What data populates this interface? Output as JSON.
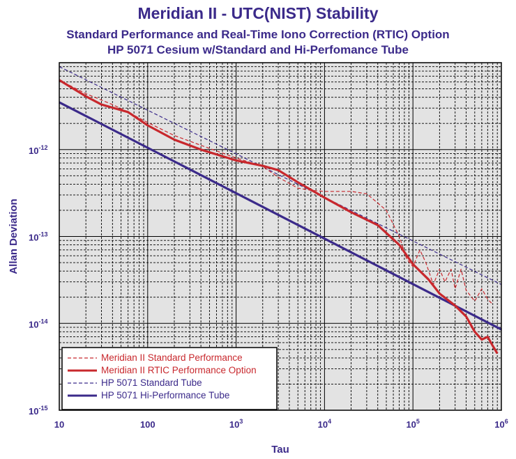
{
  "titles": {
    "main": "Meridian II - UTC(NIST) Stability",
    "sub1": "Standard Performance and Real-Time Iono Correction (RTIC) Option",
    "sub2": "HP 5071 Cesium w/Standard and Hi-Perfomance Tube"
  },
  "colors": {
    "purple": "#3b2a8a",
    "red": "#c8282d",
    "plot_bg": "#e3e3e3"
  },
  "chart_data": {
    "type": "line",
    "title": "Meridian II - UTC(NIST) Stability",
    "xlabel": "Tau",
    "ylabel": "Allan Deviation",
    "xscale": "log",
    "yscale": "log",
    "xlim": [
      10,
      1000000
    ],
    "ylim": [
      1e-15,
      1e-11
    ],
    "grid": true,
    "legend_position": "bottom-left",
    "x_ticks": [
      {
        "base": "10",
        "exp": ""
      },
      {
        "base": "100",
        "exp": ""
      },
      {
        "base": "10",
        "exp": "3"
      },
      {
        "base": "10",
        "exp": "4"
      },
      {
        "base": "10",
        "exp": "5"
      },
      {
        "base": "10",
        "exp": "6"
      }
    ],
    "y_ticks": [
      {
        "base": "10",
        "exp": "-12"
      },
      {
        "base": "10",
        "exp": "-13"
      },
      {
        "base": "10",
        "exp": "-14"
      },
      {
        "base": "10",
        "exp": "-15"
      }
    ],
    "series": [
      {
        "name": "Meridian II Standard Performance",
        "color": "#c8282d",
        "style": "dashed-thin",
        "points": [
          [
            10,
            6.3e-12
          ],
          [
            20,
            4.4e-12
          ],
          [
            40,
            3.3e-12
          ],
          [
            60,
            2.7e-12
          ],
          [
            100,
            2.05e-12
          ],
          [
            200,
            1.45e-12
          ],
          [
            400,
            1.12e-12
          ],
          [
            1000,
            8e-13
          ],
          [
            2000,
            6.4e-13
          ],
          [
            3000,
            4.8e-13
          ],
          [
            5000,
            3.6e-13
          ],
          [
            7000,
            3.4e-13
          ],
          [
            10000,
            3.3e-13
          ],
          [
            20000,
            3.3e-13
          ],
          [
            30000,
            3.1e-13
          ],
          [
            50000,
            2e-13
          ],
          [
            70000,
            1e-13
          ],
          [
            85000,
            5.5e-14
          ],
          [
            100000,
            4.5e-14
          ],
          [
            120000,
            7e-14
          ],
          [
            140000,
            5e-14
          ],
          [
            170000,
            2.8e-14
          ],
          [
            200000,
            4.2e-14
          ],
          [
            230000,
            3e-14
          ],
          [
            270000,
            4.2e-14
          ],
          [
            300000,
            2.5e-14
          ],
          [
            350000,
            4.2e-14
          ],
          [
            400000,
            2.4e-14
          ],
          [
            500000,
            1.8e-14
          ],
          [
            600000,
            2.5e-14
          ],
          [
            700000,
            1.9e-14
          ],
          [
            800000,
            1.65e-14
          ]
        ]
      },
      {
        "name": "Meridian II RTIC Performance Option",
        "color": "#c8282d",
        "style": "solid-thick",
        "points": [
          [
            10,
            6.3e-12
          ],
          [
            20,
            4.1e-12
          ],
          [
            30,
            3.3e-12
          ],
          [
            60,
            2.7e-12
          ],
          [
            100,
            1.9e-12
          ],
          [
            200,
            1.3e-12
          ],
          [
            400,
            1e-12
          ],
          [
            1000,
            7.5e-13
          ],
          [
            2000,
            6.5e-13
          ],
          [
            3000,
            5.8e-13
          ],
          [
            5000,
            4.2e-13
          ],
          [
            10000,
            2.8e-13
          ],
          [
            20000,
            1.9e-13
          ],
          [
            40000,
            1.35e-13
          ],
          [
            70000,
            8e-14
          ],
          [
            100000,
            4.8e-14
          ],
          [
            150000,
            3.2e-14
          ],
          [
            200000,
            2.2e-14
          ],
          [
            300000,
            1.6e-14
          ],
          [
            400000,
            1.2e-14
          ],
          [
            500000,
            8e-15
          ],
          [
            600000,
            6.5e-15
          ],
          [
            700000,
            7e-15
          ],
          [
            800000,
            5.5e-15
          ],
          [
            900000,
            4.5e-15
          ]
        ]
      },
      {
        "name": "HP 5071 Standard Tube",
        "color": "#3b2a8a",
        "style": "dashed-thin",
        "points": [
          [
            10,
            9e-12
          ],
          [
            1000000,
            2.8e-14
          ]
        ]
      },
      {
        "name": "HP 5071 Hi-Performance Tube",
        "color": "#3b2a8a",
        "style": "solid-thick",
        "points": [
          [
            10,
            3.5e-12
          ],
          [
            1000000,
            8.5e-15
          ]
        ]
      }
    ]
  }
}
